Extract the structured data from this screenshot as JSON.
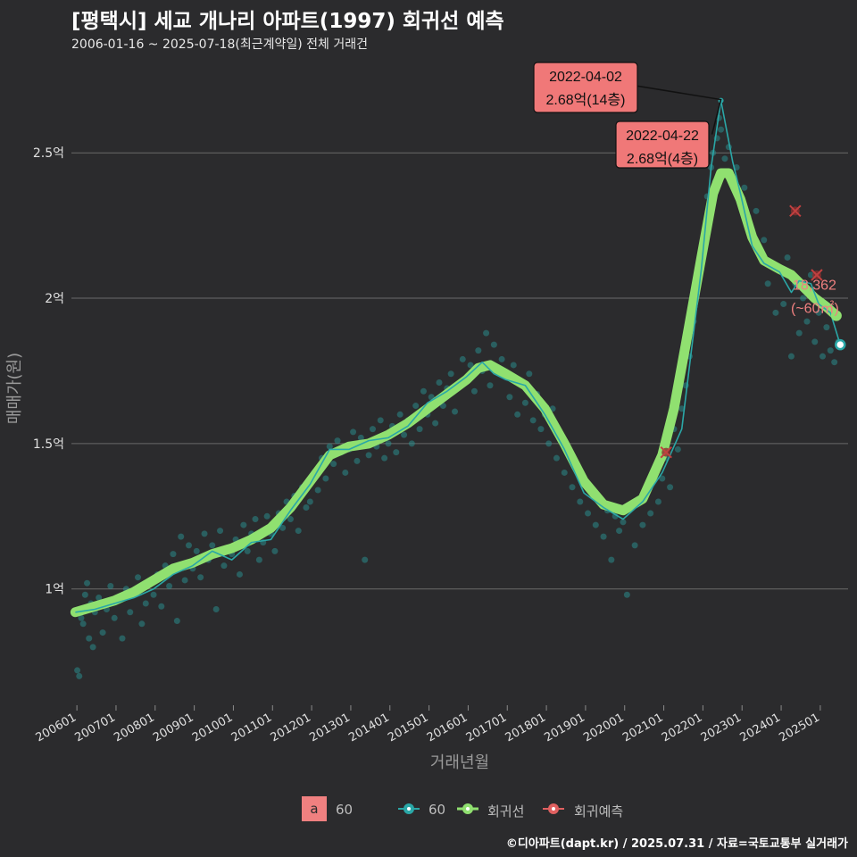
{
  "title": "[평택시] 세교 개나리 아파트(1997) 회귀선 예측",
  "subtitle": "2006-01-16 ~ 2025-07-18(최근계약일) 전체 거래건",
  "caption": "©디아파트(dapt.kr) / 2025.07.31 / 자료=국토교통부 실거래가",
  "colors": {
    "background": "#2b2b2d",
    "grid": "#6a6a6a",
    "scatter": "#2a8a8a",
    "trend": "#2aa7a7",
    "regression": "#90e070",
    "prediction": "#e06060",
    "label_fill": "#f07878"
  },
  "legend": {
    "label_key": "a",
    "label_text": "60",
    "items": [
      {
        "name": "60",
        "icon": "teal-line-point-icon"
      },
      {
        "name": "회귀선",
        "icon": "green-line-point-icon"
      },
      {
        "name": "회귀예측",
        "icon": "red-line-point-icon"
      }
    ]
  },
  "annotations": [
    {
      "date": "2022-04-02",
      "text": "2.68억(14층)"
    },
    {
      "date": "2022-04-22",
      "text": "2.68억(4층)"
    }
  ],
  "end_label": {
    "value": "18,362",
    "unit": "(~60㎡)"
  },
  "chart_data": {
    "type": "line",
    "xlabel": "거래년월",
    "ylabel": "매매가(원)",
    "x_ticks": [
      "200601",
      "200701",
      "200801",
      "200901",
      "201001",
      "201101",
      "201201",
      "201301",
      "201401",
      "201501",
      "201601",
      "201701",
      "201801",
      "201901",
      "202001",
      "202101",
      "202201",
      "202301",
      "202401",
      "202501"
    ],
    "y_ticks": [
      {
        "value": 1.0,
        "label": "1억"
      },
      {
        "value": 1.5,
        "label": "1.5억"
      },
      {
        "value": 2.0,
        "label": "2억"
      },
      {
        "value": 2.5,
        "label": "2.5억"
      }
    ],
    "ylim": [
      0.6,
      2.78
    ],
    "xlim": [
      2005.9,
      2025.75
    ],
    "series": [
      {
        "name": "회귀선",
        "x": [
          2006.0,
          2006.5,
          2007.0,
          2007.5,
          2008.0,
          2008.5,
          2009.0,
          2009.5,
          2010.0,
          2010.5,
          2011.0,
          2011.5,
          2012.0,
          2012.5,
          2013.0,
          2013.5,
          2014.0,
          2014.5,
          2015.0,
          2015.5,
          2016.0,
          2016.3,
          2016.6,
          2017.0,
          2017.5,
          2018.0,
          2018.5,
          2019.0,
          2019.5,
          2020.0,
          2020.5,
          2021.0,
          2021.3,
          2021.6,
          2022.0,
          2022.3,
          2022.5,
          2022.7,
          2023.0,
          2023.3,
          2023.6,
          2024.0,
          2024.3,
          2024.6,
          2024.9,
          2025.2,
          2025.45
        ],
        "values": [
          0.92,
          0.94,
          0.96,
          0.99,
          1.03,
          1.07,
          1.09,
          1.12,
          1.14,
          1.17,
          1.21,
          1.28,
          1.37,
          1.46,
          1.49,
          1.5,
          1.53,
          1.57,
          1.62,
          1.67,
          1.72,
          1.76,
          1.77,
          1.74,
          1.7,
          1.62,
          1.5,
          1.37,
          1.29,
          1.27,
          1.31,
          1.46,
          1.62,
          1.84,
          2.14,
          2.36,
          2.43,
          2.43,
          2.34,
          2.21,
          2.13,
          2.1,
          2.08,
          2.04,
          2.0,
          1.97,
          1.94
        ]
      },
      {
        "name": "60",
        "x": [
          2006.0,
          2006.5,
          2007.0,
          2007.5,
          2008.0,
          2008.5,
          2009.0,
          2009.5,
          2010.0,
          2010.5,
          2011.0,
          2011.5,
          2012.0,
          2012.5,
          2013.0,
          2013.5,
          2014.0,
          2014.5,
          2015.0,
          2015.5,
          2016.0,
          2016.4,
          2016.7,
          2017.0,
          2017.5,
          2018.0,
          2018.5,
          2019.0,
          2019.5,
          2020.0,
          2020.5,
          2021.0,
          2021.5,
          2022.0,
          2022.25,
          2022.5,
          2022.8,
          2023.0,
          2023.3,
          2023.6,
          2024.0,
          2024.3,
          2024.5,
          2024.8,
          2025.0,
          2025.3,
          2025.55
        ],
        "values": [
          0.92,
          0.93,
          0.95,
          0.97,
          1.0,
          1.05,
          1.08,
          1.13,
          1.1,
          1.16,
          1.17,
          1.27,
          1.36,
          1.48,
          1.48,
          1.51,
          1.52,
          1.56,
          1.64,
          1.68,
          1.73,
          1.78,
          1.74,
          1.72,
          1.7,
          1.6,
          1.48,
          1.33,
          1.28,
          1.24,
          1.3,
          1.4,
          1.55,
          2.1,
          2.45,
          2.68,
          2.47,
          2.36,
          2.18,
          2.12,
          2.09,
          2.02,
          2.06,
          2.05,
          1.98,
          1.95,
          1.84
        ]
      },
      {
        "name": "회귀예측",
        "x": [
          2021.1,
          2024.4,
          2024.95
        ],
        "values": [
          1.47,
          2.3,
          2.08
        ]
      }
    ],
    "scatter_points": [
      [
        2006.05,
        0.72
      ],
      [
        2006.1,
        0.7
      ],
      [
        2006.15,
        0.9
      ],
      [
        2006.2,
        0.88
      ],
      [
        2006.25,
        0.98
      ],
      [
        2006.3,
        1.02
      ],
      [
        2006.35,
        0.83
      ],
      [
        2006.4,
        0.95
      ],
      [
        2006.45,
        0.8
      ],
      [
        2006.5,
        0.92
      ],
      [
        2006.6,
        0.97
      ],
      [
        2006.7,
        0.85
      ],
      [
        2006.8,
        0.93
      ],
      [
        2006.9,
        1.01
      ],
      [
        2007.0,
        0.9
      ],
      [
        2007.1,
        0.96
      ],
      [
        2007.2,
        0.83
      ],
      [
        2007.3,
        1.0
      ],
      [
        2007.4,
        0.92
      ],
      [
        2007.5,
        0.98
      ],
      [
        2007.6,
        1.04
      ],
      [
        2007.7,
        0.88
      ],
      [
        2007.8,
        0.95
      ],
      [
        2007.9,
        1.02
      ],
      [
        2008.0,
        0.98
      ],
      [
        2008.1,
        1.05
      ],
      [
        2008.2,
        0.94
      ],
      [
        2008.3,
        1.08
      ],
      [
        2008.4,
        1.01
      ],
      [
        2008.5,
        1.12
      ],
      [
        2008.6,
        0.89
      ],
      [
        2008.7,
        1.18
      ],
      [
        2008.8,
        1.03
      ],
      [
        2008.9,
        1.15
      ],
      [
        2009.0,
        1.07
      ],
      [
        2009.1,
        1.13
      ],
      [
        2009.2,
        1.04
      ],
      [
        2009.3,
        1.19
      ],
      [
        2009.4,
        1.1
      ],
      [
        2009.5,
        1.15
      ],
      [
        2009.6,
        0.93
      ],
      [
        2009.7,
        1.2
      ],
      [
        2009.8,
        1.08
      ],
      [
        2009.9,
        1.14
      ],
      [
        2010.0,
        1.12
      ],
      [
        2010.1,
        1.17
      ],
      [
        2010.2,
        1.05
      ],
      [
        2010.3,
        1.22
      ],
      [
        2010.4,
        1.13
      ],
      [
        2010.5,
        1.19
      ],
      [
        2010.6,
        1.24
      ],
      [
        2010.7,
        1.1
      ],
      [
        2010.8,
        1.16
      ],
      [
        2010.9,
        1.25
      ],
      [
        2011.0,
        1.19
      ],
      [
        2011.1,
        1.13
      ],
      [
        2011.2,
        1.26
      ],
      [
        2011.3,
        1.21
      ],
      [
        2011.4,
        1.3
      ],
      [
        2011.5,
        1.24
      ],
      [
        2011.6,
        1.32
      ],
      [
        2011.7,
        1.2
      ],
      [
        2011.8,
        1.35
      ],
      [
        2011.9,
        1.28
      ],
      [
        2012.0,
        1.3
      ],
      [
        2012.1,
        1.4
      ],
      [
        2012.2,
        1.34
      ],
      [
        2012.3,
        1.45
      ],
      [
        2012.4,
        1.38
      ],
      [
        2012.5,
        1.49
      ],
      [
        2012.6,
        1.43
      ],
      [
        2012.7,
        1.51
      ],
      [
        2012.8,
        1.47
      ],
      [
        2012.9,
        1.4
      ],
      [
        2013.0,
        1.48
      ],
      [
        2013.1,
        1.54
      ],
      [
        2013.2,
        1.44
      ],
      [
        2013.3,
        1.52
      ],
      [
        2013.4,
        1.1
      ],
      [
        2013.5,
        1.46
      ],
      [
        2013.6,
        1.55
      ],
      [
        2013.7,
        1.49
      ],
      [
        2013.8,
        1.58
      ],
      [
        2013.9,
        1.45
      ],
      [
        2014.0,
        1.5
      ],
      [
        2014.1,
        1.56
      ],
      [
        2014.2,
        1.47
      ],
      [
        2014.3,
        1.6
      ],
      [
        2014.4,
        1.53
      ],
      [
        2014.5,
        1.58
      ],
      [
        2014.6,
        1.5
      ],
      [
        2014.7,
        1.63
      ],
      [
        2014.8,
        1.55
      ],
      [
        2014.9,
        1.68
      ],
      [
        2015.0,
        1.6
      ],
      [
        2015.1,
        1.66
      ],
      [
        2015.2,
        1.57
      ],
      [
        2015.3,
        1.71
      ],
      [
        2015.4,
        1.63
      ],
      [
        2015.5,
        1.69
      ],
      [
        2015.6,
        1.74
      ],
      [
        2015.7,
        1.61
      ],
      [
        2015.8,
        1.7
      ],
      [
        2015.9,
        1.79
      ],
      [
        2016.0,
        1.72
      ],
      [
        2016.1,
        1.77
      ],
      [
        2016.2,
        1.68
      ],
      [
        2016.3,
        1.82
      ],
      [
        2016.4,
        1.75
      ],
      [
        2016.5,
        1.88
      ],
      [
        2016.6,
        1.7
      ],
      [
        2016.7,
        1.84
      ],
      [
        2016.8,
        1.76
      ],
      [
        2016.9,
        1.79
      ],
      [
        2017.0,
        1.73
      ],
      [
        2017.1,
        1.66
      ],
      [
        2017.2,
        1.77
      ],
      [
        2017.3,
        1.6
      ],
      [
        2017.4,
        1.71
      ],
      [
        2017.5,
        1.64
      ],
      [
        2017.6,
        1.74
      ],
      [
        2017.7,
        1.58
      ],
      [
        2017.8,
        1.67
      ],
      [
        2017.9,
        1.55
      ],
      [
        2018.0,
        1.6
      ],
      [
        2018.1,
        1.5
      ],
      [
        2018.2,
        1.62
      ],
      [
        2018.3,
        1.45
      ],
      [
        2018.4,
        1.53
      ],
      [
        2018.5,
        1.4
      ],
      [
        2018.6,
        1.48
      ],
      [
        2018.7,
        1.35
      ],
      [
        2018.8,
        1.42
      ],
      [
        2018.9,
        1.3
      ],
      [
        2019.0,
        1.36
      ],
      [
        2019.1,
        1.26
      ],
      [
        2019.2,
        1.33
      ],
      [
        2019.3,
        1.22
      ],
      [
        2019.4,
        1.3
      ],
      [
        2019.5,
        1.18
      ],
      [
        2019.6,
        1.27
      ],
      [
        2019.7,
        1.1
      ],
      [
        2019.8,
        1.25
      ],
      [
        2019.9,
        1.2
      ],
      [
        2020.0,
        1.23
      ],
      [
        2020.1,
        0.98
      ],
      [
        2020.2,
        1.28
      ],
      [
        2020.3,
        1.15
      ],
      [
        2020.4,
        1.3
      ],
      [
        2020.5,
        1.22
      ],
      [
        2020.6,
        1.35
      ],
      [
        2020.7,
        1.26
      ],
      [
        2020.8,
        1.38
      ],
      [
        2020.9,
        1.3
      ],
      [
        2021.0,
        1.38
      ],
      [
        2021.1,
        1.45
      ],
      [
        2021.2,
        1.35
      ],
      [
        2021.3,
        1.55
      ],
      [
        2021.4,
        1.48
      ],
      [
        2021.5,
        1.62
      ],
      [
        2021.6,
        1.7
      ],
      [
        2021.7,
        1.8
      ],
      [
        2021.8,
        1.92
      ],
      [
        2021.9,
        2.05
      ],
      [
        2022.0,
        2.1
      ],
      [
        2022.1,
        2.2
      ],
      [
        2022.15,
        2.35
      ],
      [
        2022.2,
        2.28
      ],
      [
        2022.25,
        2.45
      ],
      [
        2022.3,
        2.5
      ],
      [
        2022.35,
        2.4
      ],
      [
        2022.4,
        2.55
      ],
      [
        2022.45,
        2.62
      ],
      [
        2022.5,
        2.58
      ],
      [
        2022.6,
        2.48
      ],
      [
        2022.7,
        2.52
      ],
      [
        2022.8,
        2.4
      ],
      [
        2022.9,
        2.45
      ],
      [
        2023.0,
        2.35
      ],
      [
        2023.1,
        2.38
      ],
      [
        2023.2,
        2.28
      ],
      [
        2023.3,
        2.22
      ],
      [
        2023.4,
        2.3
      ],
      [
        2023.5,
        2.15
      ],
      [
        2023.6,
        2.2
      ],
      [
        2023.7,
        2.05
      ],
      [
        2023.8,
        2.12
      ],
      [
        2023.9,
        1.95
      ],
      [
        2024.0,
        2.1
      ],
      [
        2024.1,
        1.98
      ],
      [
        2024.2,
        2.14
      ],
      [
        2024.3,
        1.8
      ],
      [
        2024.4,
        2.05
      ],
      [
        2024.5,
        1.88
      ],
      [
        2024.6,
        2.0
      ],
      [
        2024.7,
        1.92
      ],
      [
        2024.8,
        2.08
      ],
      [
        2024.9,
        1.85
      ],
      [
        2025.0,
        1.95
      ],
      [
        2025.1,
        1.8
      ],
      [
        2025.2,
        1.9
      ],
      [
        2025.3,
        1.82
      ],
      [
        2025.4,
        1.78
      ],
      [
        2025.5,
        1.85
      ]
    ]
  }
}
